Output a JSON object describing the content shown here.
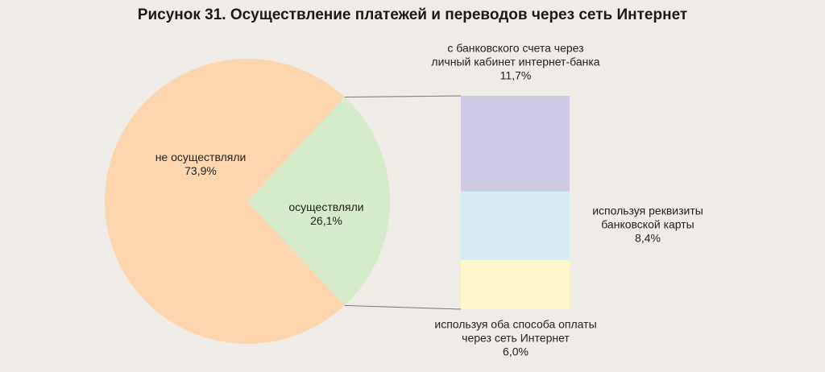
{
  "chart_data": {
    "type": "pie-of-bar",
    "title": "Рисунок 31. Осуществление платежей и переводов через сеть Интернет",
    "categories": [
      "не осуществляли",
      "осуществляли"
    ],
    "values": [
      73.9,
      26.1
    ],
    "value_labels": [
      "73,9%",
      "26,1%"
    ],
    "colors": [
      "#fdd6b0",
      "#d6ebc9"
    ],
    "breakdown": {
      "categories": [
        "с банковского счета через\nличный кабинет интернет-банка",
        "используя реквизиты\nбанковской карты",
        "используя оба способа оплаты\nчерез сеть Интернет"
      ],
      "values": [
        11.7,
        8.4,
        6.0
      ],
      "value_labels": [
        "11,7%",
        "8,4%",
        "6,0%"
      ],
      "colors": [
        "#cfcbe6",
        "#d5ecf2",
        "#fbf7ca"
      ]
    }
  }
}
